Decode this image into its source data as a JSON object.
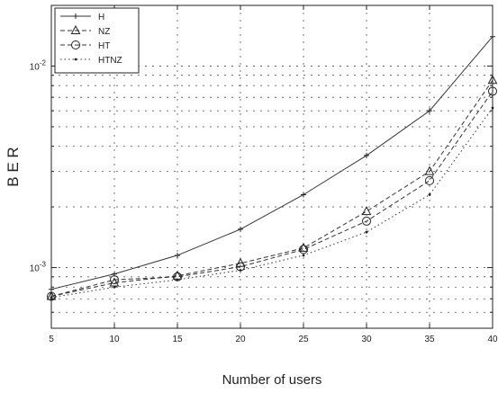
{
  "chart_data": {
    "type": "line",
    "title": "",
    "xlabel": "Number of users",
    "ylabel": "B E R",
    "xlim": [
      5,
      40
    ],
    "ylim": [
      0.0005,
      0.02
    ],
    "yscale": "log",
    "grid": true,
    "legend_position": "top-left",
    "x": [
      5,
      10,
      15,
      20,
      25,
      30,
      35,
      40
    ],
    "x_tick_labels": [
      "5",
      "10",
      "15",
      "20",
      "25",
      "30",
      "35",
      "40"
    ],
    "y_ticks": [
      {
        "value": 0.001,
        "base": "10",
        "exponent": "-3"
      },
      {
        "value": 0.01,
        "base": "10",
        "exponent": "-2"
      }
    ],
    "series": [
      {
        "name": "H",
        "style": "solid",
        "marker": "+",
        "color": "#333333",
        "values": [
          0.00078,
          0.00093,
          0.00115,
          0.00155,
          0.0023,
          0.0036,
          0.006,
          0.014
        ]
      },
      {
        "name": "NZ",
        "style": "dashed",
        "marker": "triangle",
        "color": "#333333",
        "values": [
          0.00072,
          0.00084,
          0.00091,
          0.00105,
          0.00125,
          0.0019,
          0.003,
          0.0085
        ]
      },
      {
        "name": "HT",
        "style": "dashed",
        "marker": "circle",
        "color": "#333333",
        "values": [
          0.00072,
          0.00087,
          0.0009,
          0.00101,
          0.00123,
          0.0017,
          0.0027,
          0.0075
        ]
      },
      {
        "name": "HTNZ",
        "style": "dotted",
        "marker": "dot",
        "color": "#333333",
        "values": [
          0.00071,
          0.0008,
          0.00087,
          0.00097,
          0.00115,
          0.0015,
          0.0023,
          0.0062
        ]
      }
    ]
  }
}
